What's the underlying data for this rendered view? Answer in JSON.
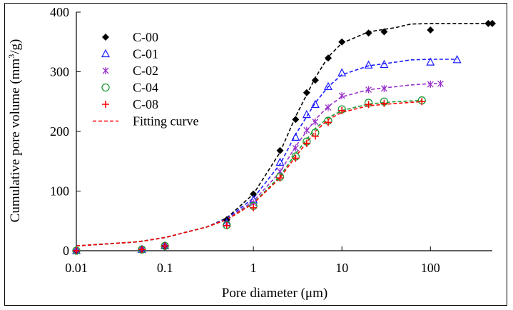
{
  "chart_data": {
    "type": "scatter",
    "title": "",
    "xlabel": "Pore diameter (μm)",
    "ylabel_main": "Cumulative pore volume (mm",
    "ylabel_sup": "3",
    "ylabel_tail": "/g)",
    "x_scale": "log",
    "xlim": [
      0.01,
      500
    ],
    "ylim": [
      0,
      400
    ],
    "x_ticks": [
      0.01,
      0.1,
      1,
      10,
      100
    ],
    "x_tick_labels": [
      "0.01",
      "0.1",
      "1",
      "10",
      "100"
    ],
    "y_ticks": [
      0,
      100,
      200,
      300,
      400
    ],
    "y_tick_labels": [
      "0",
      "100",
      "200",
      "300",
      "400"
    ],
    "grid": false,
    "legend_position": "top-left",
    "series": [
      {
        "name": "C-00",
        "marker": "diamond",
        "color": "#000000",
        "x": [
          0.01,
          0.055,
          0.1,
          0.5,
          1,
          2,
          3,
          4,
          5,
          7,
          10,
          20,
          30,
          100,
          450,
          500
        ],
        "y": [
          0,
          2,
          8,
          52,
          95,
          168,
          220,
          265,
          286,
          323,
          350,
          365,
          367,
          370,
          381,
          381
        ]
      },
      {
        "name": "C-01",
        "marker": "triangle-open",
        "color": "#1a1aff",
        "x": [
          0.01,
          0.055,
          0.1,
          0.5,
          1,
          2,
          3,
          4,
          5,
          7,
          10,
          20,
          30,
          100,
          200
        ],
        "y": [
          0,
          2,
          8,
          47,
          85,
          148,
          190,
          228,
          245,
          275,
          298,
          311,
          312,
          316,
          320
        ]
      },
      {
        "name": "C-02",
        "marker": "asterisk",
        "color": "#9933cc",
        "x": [
          0.01,
          0.055,
          0.1,
          0.5,
          1,
          2,
          3,
          4,
          5,
          7,
          10,
          20,
          30,
          100,
          130
        ],
        "y": [
          0,
          2,
          8,
          45,
          80,
          133,
          172,
          202,
          216,
          240,
          260,
          270,
          272,
          279,
          280
        ]
      },
      {
        "name": "C-04",
        "marker": "circle-open",
        "color": "#1a9933",
        "x": [
          0.01,
          0.055,
          0.1,
          0.5,
          1,
          2,
          3,
          4,
          5,
          7,
          10,
          20,
          30,
          80
        ],
        "y": [
          0,
          2,
          8,
          43,
          75,
          124,
          158,
          183,
          198,
          218,
          237,
          248,
          250,
          252
        ]
      },
      {
        "name": "C-08",
        "marker": "plus",
        "color": "#ff0000",
        "x": [
          0.01,
          0.055,
          0.1,
          0.5,
          1,
          2,
          3,
          4,
          5,
          7,
          10,
          20,
          30,
          80
        ],
        "y": [
          0,
          2,
          8,
          42,
          72,
          122,
          155,
          180,
          192,
          215,
          235,
          245,
          247,
          250
        ]
      }
    ],
    "fitting_curves": [
      {
        "series": "C-00",
        "color": "#000000",
        "x": [
          0.01,
          0.05,
          0.1,
          0.3,
          0.5,
          1,
          2,
          3,
          5,
          7,
          10,
          20,
          40,
          60,
          100,
          200,
          500
        ],
        "y": [
          8,
          15,
          22,
          40,
          55,
          95,
          165,
          225,
          290,
          325,
          348,
          367,
          374,
          380,
          381,
          381,
          381
        ]
      },
      {
        "series": "C-01",
        "color": "#1a1aff",
        "x": [
          0.01,
          0.05,
          0.1,
          0.3,
          0.5,
          1,
          2,
          3,
          5,
          7,
          10,
          20,
          40,
          60,
          100,
          200
        ],
        "y": [
          8,
          15,
          22,
          40,
          54,
          88,
          145,
          195,
          248,
          275,
          295,
          310,
          316,
          320,
          321,
          321
        ]
      },
      {
        "series": "C-02",
        "color": "#9933cc",
        "x": [
          0.01,
          0.05,
          0.1,
          0.3,
          0.5,
          1,
          2,
          3,
          5,
          7,
          10,
          20,
          40,
          60,
          100,
          130
        ],
        "y": [
          8,
          15,
          22,
          40,
          53,
          83,
          132,
          175,
          220,
          242,
          258,
          270,
          275,
          278,
          280,
          280
        ]
      },
      {
        "series": "C-04",
        "color": "#1a9933",
        "x": [
          0.01,
          0.05,
          0.1,
          0.3,
          0.5,
          1,
          2,
          3,
          5,
          7,
          10,
          20,
          40,
          80
        ],
        "y": [
          8,
          15,
          22,
          40,
          52,
          80,
          125,
          163,
          205,
          223,
          235,
          246,
          250,
          252
        ]
      },
      {
        "series": "C-08",
        "color": "#ff0000",
        "x": [
          0.01,
          0.05,
          0.1,
          0.3,
          0.5,
          1,
          2,
          3,
          5,
          7,
          10,
          20,
          40,
          80
        ],
        "y": [
          8,
          15,
          22,
          40,
          52,
          79,
          122,
          158,
          200,
          220,
          232,
          243,
          247,
          250
        ]
      }
    ],
    "legend": [
      {
        "label": "C-00",
        "marker": "diamond",
        "color": "#000000"
      },
      {
        "label": "C-01",
        "marker": "triangle-open",
        "color": "#1a1aff"
      },
      {
        "label": "C-02",
        "marker": "asterisk",
        "color": "#9933cc"
      },
      {
        "label": "C-04",
        "marker": "circle-open",
        "color": "#1a9933"
      },
      {
        "label": "C-08",
        "marker": "plus",
        "color": "#ff0000"
      },
      {
        "label": "Fitting curve",
        "marker": "dashed-line",
        "color": "#ff0000"
      }
    ]
  }
}
